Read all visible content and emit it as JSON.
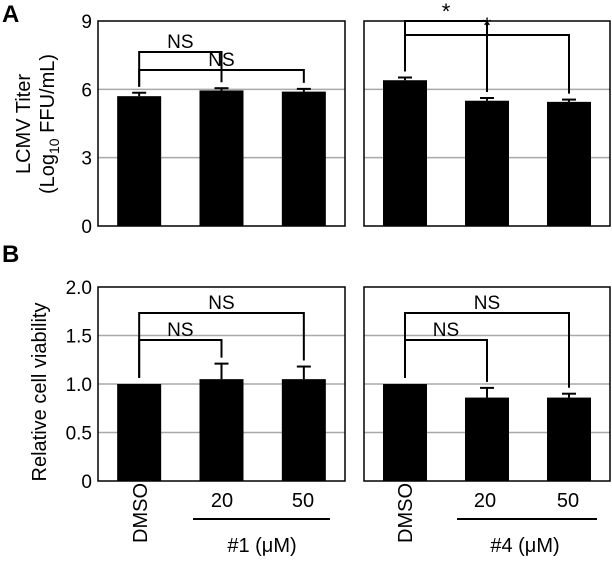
{
  "figure": {
    "panels": [
      {
        "letter": "A",
        "ylabel_line1": "LCMV Titer",
        "ylabel_line2_pre": "(Log",
        "ylabel_sub": "10",
        "ylabel_line2_post": " FFU/mL)"
      },
      {
        "letter": "B",
        "ylabel": "Relative cell viability"
      }
    ],
    "x_categories": [
      "DMSO",
      "20",
      "50"
    ],
    "group_labels": [
      "#1 (μM)",
      "#4 (μM)"
    ]
  },
  "chart_data": [
    {
      "type": "bar",
      "id": "A-compound1",
      "panel": "A",
      "compound": "#1",
      "categories": [
        "DMSO",
        "20",
        "50"
      ],
      "values": [
        5.7,
        5.95,
        5.9
      ],
      "errors": [
        0.15,
        0.1,
        0.12
      ],
      "ylabel": "LCMV Titer (Log10 FFU/mL)",
      "ylim": [
        0,
        9
      ],
      "yticks": [
        "0",
        "3",
        "6",
        "9"
      ],
      "gridlines": [
        3,
        6
      ],
      "significance": [
        {
          "from": 0,
          "to": 1,
          "label": "NS"
        },
        {
          "from": 0,
          "to": 2,
          "label": "NS"
        }
      ]
    },
    {
      "type": "bar",
      "id": "A-compound4",
      "panel": "A",
      "compound": "#4",
      "categories": [
        "DMSO",
        "20",
        "50"
      ],
      "values": [
        6.4,
        5.5,
        5.45
      ],
      "errors": [
        0.12,
        0.12,
        0.1
      ],
      "ylim": [
        0,
        9
      ],
      "gridlines": [
        3,
        6
      ],
      "significance": [
        {
          "from": 0,
          "to": 1,
          "label": "*"
        },
        {
          "from": 0,
          "to": 2,
          "label": "*"
        }
      ]
    },
    {
      "type": "bar",
      "id": "B-compound1",
      "panel": "B",
      "compound": "#1",
      "categories": [
        "DMSO",
        "20",
        "50"
      ],
      "values": [
        1.0,
        1.05,
        1.05
      ],
      "errors": [
        0.0,
        0.16,
        0.13
      ],
      "ylabel": "Relative cell viability",
      "ylim": [
        0,
        2.0
      ],
      "yticks": [
        "0",
        "0.5",
        "1.0",
        "1.5",
        "2.0"
      ],
      "gridlines": [
        0.5,
        1.0,
        1.5
      ],
      "significance": [
        {
          "from": 0,
          "to": 1,
          "label": "NS"
        },
        {
          "from": 0,
          "to": 2,
          "label": "NS"
        }
      ]
    },
    {
      "type": "bar",
      "id": "B-compound4",
      "panel": "B",
      "compound": "#4",
      "categories": [
        "DMSO",
        "20",
        "50"
      ],
      "values": [
        1.0,
        0.86,
        0.86
      ],
      "errors": [
        0.0,
        0.1,
        0.04
      ],
      "ylim": [
        0,
        2.0
      ],
      "gridlines": [
        0.5,
        1.0,
        1.5
      ],
      "significance": [
        {
          "from": 0,
          "to": 1,
          "label": "NS"
        },
        {
          "from": 0,
          "to": 2,
          "label": "NS"
        }
      ]
    }
  ]
}
